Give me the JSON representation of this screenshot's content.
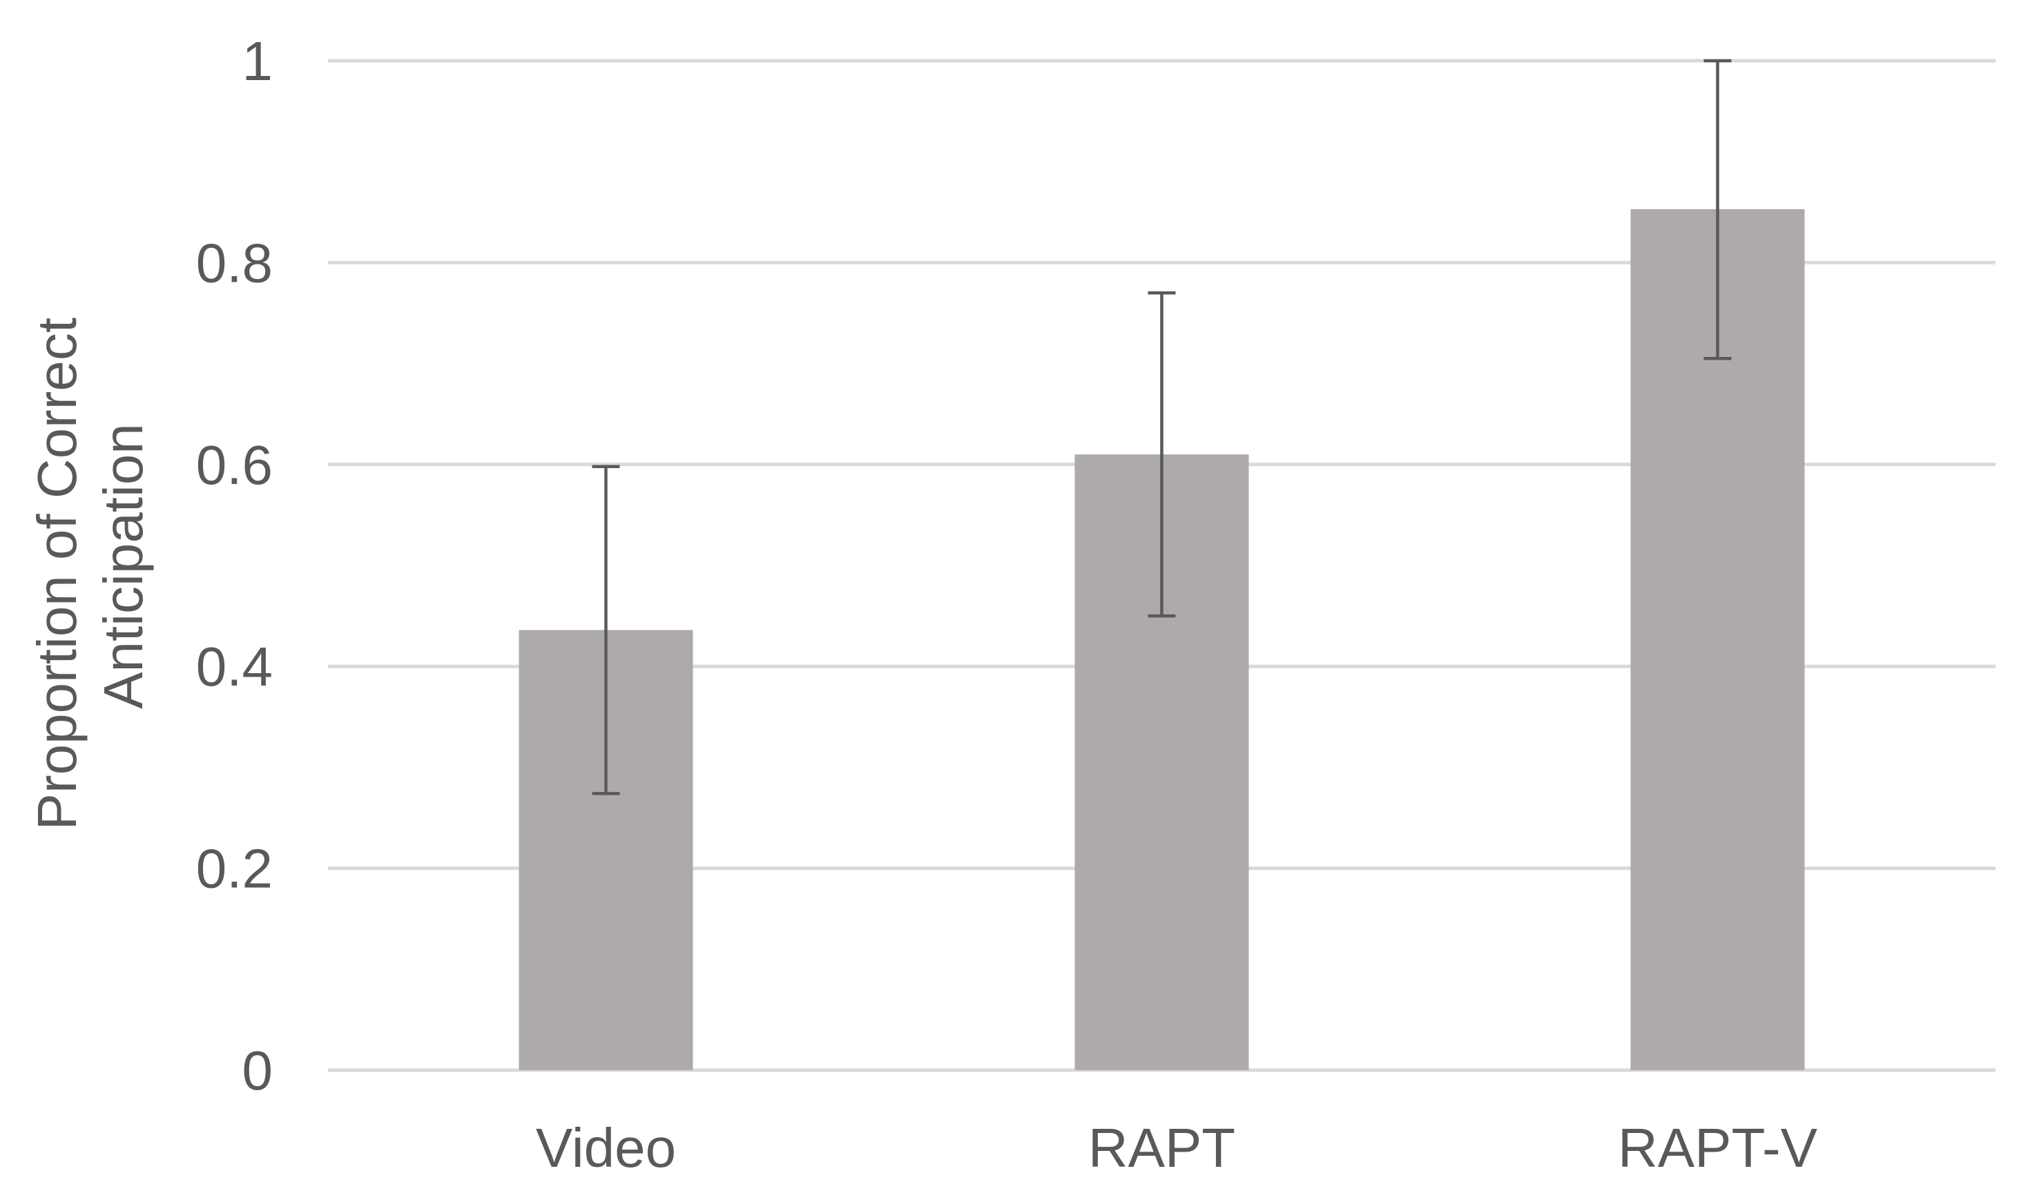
{
  "chart_data": {
    "type": "bar",
    "title": "",
    "xlabel": "",
    "ylabel_lines": [
      "Proportion of Correct",
      "Anticipation"
    ],
    "categories": [
      "Video",
      "RAPT",
      "RAPT-V"
    ],
    "series": [
      {
        "values": [
          0.436,
          0.61,
          0.853
        ],
        "error_low": [
          0.274,
          0.45,
          0.705
        ],
        "error_high": [
          0.598,
          0.77,
          1.0
        ],
        "color": "#aeaaaa"
      }
    ],
    "ylim": [
      0,
      1
    ],
    "yticks": [
      0,
      0.2,
      0.4,
      0.6,
      0.8,
      1
    ],
    "ytick_labels": [
      "0",
      "0.2",
      "0.4",
      "0.6",
      "0.8",
      "1"
    ],
    "grid": true,
    "legend": "none",
    "colors": {
      "bar": "#aeaaaa",
      "gridline": "#d9d9d9",
      "error_bar": "#595959",
      "text": "#595959"
    }
  }
}
